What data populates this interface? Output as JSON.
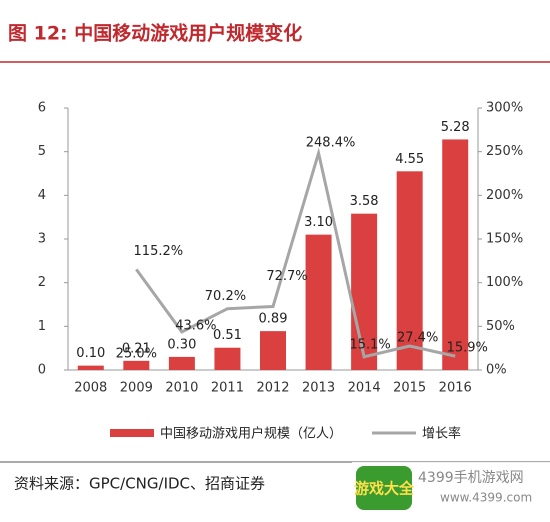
{
  "chart_data": {
    "type": "bar-line",
    "title": "图 12:  中国移动游戏用户规模变化",
    "categories": [
      "2008",
      "2009",
      "2010",
      "2011",
      "2012",
      "2013",
      "2014",
      "2015",
      "2016"
    ],
    "series": [
      {
        "name": "中国移动游戏用户规模（亿人）",
        "type": "bar",
        "color": "#d9403f",
        "values": [
          0.1,
          0.21,
          0.3,
          0.51,
          0.89,
          3.1,
          3.58,
          4.55,
          5.28
        ],
        "value_labels": [
          "0.10",
          "0.21",
          "0.30",
          "0.51",
          "0.89",
          "3.10",
          "3.58",
          "4.55",
          "5.28"
        ]
      },
      {
        "name": "增长率",
        "type": "line",
        "axis": "y2",
        "color": "#a6a6a6",
        "values": [
          null,
          115.2,
          43.6,
          70.2,
          72.7,
          248.4,
          15.1,
          27.4,
          15.9
        ],
        "value_labels": [
          null,
          "115.2%",
          "43.6%",
          "70.2%",
          "72.7%",
          "248.4%",
          "15.1%",
          "27.4%",
          "15.9%"
        ]
      }
    ],
    "annotations": [
      "25.0%"
    ],
    "ylim": [
      0,
      6
    ],
    "yticks": [
      0,
      1,
      2,
      3,
      4,
      5,
      6
    ],
    "y2lim": [
      0,
      300
    ],
    "y2ticks": [
      {
        "value": 0,
        "label": "0%"
      },
      {
        "value": 50,
        "label": "50%"
      },
      {
        "value": 100,
        "label": "100%"
      },
      {
        "value": 150,
        "label": "150%"
      },
      {
        "value": 200,
        "label": "200%"
      },
      {
        "value": 250,
        "label": "250%"
      },
      {
        "value": 300,
        "label": "300%"
      }
    ],
    "legend": "bottom",
    "source": "资料来源：GPC/CNG/IDC、招商证券",
    "watermark": {
      "logo": "游戏大全",
      "site": "4399手机游戏网",
      "url": "www.4399.com"
    }
  }
}
